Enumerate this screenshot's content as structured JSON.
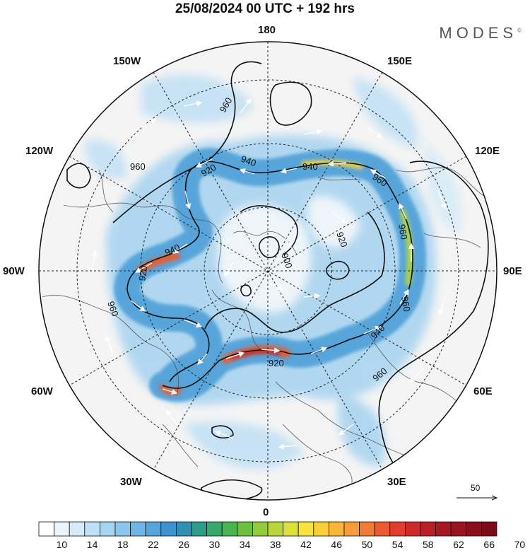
{
  "title": "25/08/2024  00 UTC  + 192 hrs",
  "brand": "MODES",
  "brand_mark": "©",
  "longitude_labels": {
    "top": "180",
    "bottom": "0",
    "left": "90W",
    "right": "90E",
    "upper_left": "150W",
    "upper_right": "150E",
    "mid_upper_left": "120W",
    "mid_upper_right": "120E",
    "mid_lower_left": "60W",
    "mid_lower_right": "60E",
    "lower_left": "30W",
    "lower_right": "30E"
  },
  "contour_labels": [
    "960",
    "960",
    "920",
    "940",
    "940",
    "960",
    "900",
    "920",
    "960",
    "940",
    "920",
    "960",
    "940",
    "960",
    "920",
    "960"
  ],
  "reference_vector": {
    "value": "50"
  },
  "colorbar": {
    "labels": [
      "10",
      "14",
      "18",
      "22",
      "26",
      "30",
      "34",
      "38",
      "42",
      "46",
      "50",
      "54",
      "58",
      "62",
      "66",
      "70"
    ],
    "colors": [
      "#ffffff",
      "#eaf4fb",
      "#d6ebf8",
      "#bfe0f5",
      "#a6d3f0",
      "#8cc5ea",
      "#70b5e3",
      "#56a4da",
      "#3d93cf",
      "#2f8fb5",
      "#2d9a8a",
      "#35a86a",
      "#48b54e",
      "#6cc03f",
      "#93cb3a",
      "#b8d53a",
      "#dce03a",
      "#f7e33c",
      "#fbcf3a",
      "#fab53a",
      "#f79a39",
      "#f27b34",
      "#ea5b2f",
      "#de3e2b",
      "#cf2a2a",
      "#bb1f26",
      "#a81823",
      "#981220",
      "#8a0e1c",
      "#7d0a18"
    ]
  }
}
